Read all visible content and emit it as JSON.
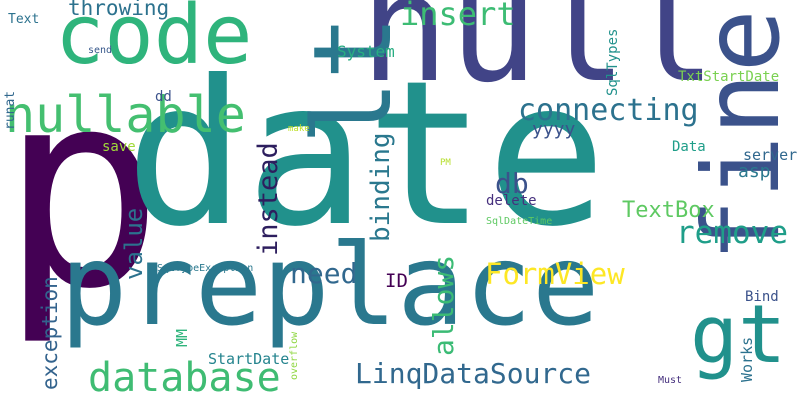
{
  "words": [
    {
      "text": "p",
      "color": "#440154",
      "vertical": false
    },
    {
      "text": "date",
      "color": "#21918c",
      "vertical": false
    },
    {
      "text": "null",
      "color": "#414487",
      "vertical": false
    },
    {
      "text": "code",
      "color": "#2fb47c",
      "vertical": false
    },
    {
      "text": "lt",
      "color": "#2a788e",
      "vertical": true
    },
    {
      "text": "fine",
      "color": "#3b528b",
      "vertical": true
    },
    {
      "text": "preplace",
      "color": "#2a788e",
      "vertical": false
    },
    {
      "text": "gt",
      "color": "#21918c",
      "vertical": false
    },
    {
      "text": "nullable",
      "color": "#44bf70",
      "vertical": false
    },
    {
      "text": "database",
      "color": "#3fbc73",
      "vertical": false
    },
    {
      "text": "connecting",
      "color": "#2c728e",
      "vertical": false
    },
    {
      "text": "insert",
      "color": "#3dbc74",
      "vertical": false
    },
    {
      "text": "throwing",
      "color": "#2c728e",
      "vertical": false
    },
    {
      "text": "LinqDataSource",
      "color": "#31688e",
      "vertical": false
    },
    {
      "text": "FormView",
      "color": "#fde725",
      "vertical": false
    },
    {
      "text": "need",
      "color": "#31688e",
      "vertical": false
    },
    {
      "text": "remove",
      "color": "#1f9e89",
      "vertical": false
    },
    {
      "text": "TextBox",
      "color": "#5ec962",
      "vertical": false
    },
    {
      "text": "db",
      "color": "#3b528b",
      "vertical": false
    },
    {
      "text": "instead",
      "color": "#2d1e5e",
      "vertical": true
    },
    {
      "text": "binding",
      "color": "#2a788e",
      "vertical": true
    },
    {
      "text": "value",
      "color": "#2c728e",
      "vertical": true
    },
    {
      "text": "allows",
      "color": "#3bbb75",
      "vertical": true
    },
    {
      "text": "exception",
      "color": "#33638d",
      "vertical": true
    },
    {
      "text": "ID",
      "color": "#440154",
      "vertical": false
    },
    {
      "text": "yyyy",
      "color": "#3b528b",
      "vertical": false
    },
    {
      "text": "asp",
      "color": "#2a788e",
      "vertical": false
    },
    {
      "text": "server",
      "color": "#31688e",
      "vertical": false
    },
    {
      "text": "Data",
      "color": "#1f9e89",
      "vertical": false
    },
    {
      "text": "delete",
      "color": "#46307e",
      "vertical": false
    },
    {
      "text": "System",
      "color": "#27ad81",
      "vertical": false
    },
    {
      "text": "SqlTypes",
      "color": "#21918c",
      "vertical": true
    },
    {
      "text": "TxtStartDate",
      "color": "#7ad151",
      "vertical": false
    },
    {
      "text": "Text",
      "color": "#2c728e",
      "vertical": false
    },
    {
      "text": "send",
      "color": "#38598c",
      "vertical": false
    },
    {
      "text": "runat",
      "color": "#31688e",
      "vertical": true
    },
    {
      "text": "dd",
      "color": "#3b528b",
      "vertical": false
    },
    {
      "text": "save",
      "color": "#a0da39",
      "vertical": false
    },
    {
      "text": "make",
      "color": "#bddf26",
      "vertical": false
    },
    {
      "text": "PM",
      "color": "#b5de2b",
      "vertical": false
    },
    {
      "text": "SqlDateTime",
      "color": "#5ec962",
      "vertical": false
    },
    {
      "text": "SqlTypeException",
      "color": "#2a788e",
      "vertical": false
    },
    {
      "text": "StartDate",
      "color": "#25848e",
      "vertical": false
    },
    {
      "text": "overflow",
      "color": "#90d743",
      "vertical": true
    },
    {
      "text": "MM",
      "color": "#2fb47c",
      "vertical": true
    },
    {
      "text": "Bind",
      "color": "#3b528b",
      "vertical": false
    },
    {
      "text": "Works",
      "color": "#2c728e",
      "vertical": true
    },
    {
      "text": "Must",
      "color": "#46307e",
      "vertical": false
    }
  ]
}
